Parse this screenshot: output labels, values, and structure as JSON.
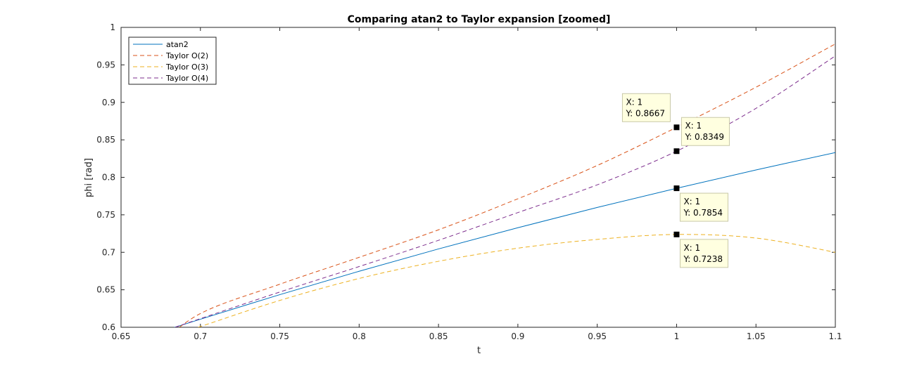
{
  "chart_data": {
    "type": "line",
    "title": "Comparing atan2 to Taylor expansion [zoomed]",
    "xlabel": "t",
    "ylabel": "phi [rad]",
    "xlim": [
      0.65,
      1.1
    ],
    "ylim": [
      0.6,
      1.0
    ],
    "xticks": [
      0.65,
      0.7,
      0.75,
      0.8,
      0.85,
      0.9,
      0.95,
      1,
      1.05,
      1.1
    ],
    "xtick_labels": [
      "0.65",
      "0.7",
      "0.75",
      "0.8",
      "0.85",
      "0.9",
      "0.95",
      "1",
      "1.05",
      "1.1"
    ],
    "yticks": [
      0.6,
      0.65,
      0.7,
      0.75,
      0.8,
      0.85,
      0.9,
      0.95,
      1.0
    ],
    "ytick_labels": [
      "0.6",
      "0.65",
      "0.7",
      "0.75",
      "0.8",
      "0.85",
      "0.9",
      "0.95",
      "1"
    ],
    "grid": false,
    "legend_position": "top-left",
    "series": [
      {
        "name": "atan2",
        "color": "#0072BD",
        "style": "solid",
        "x": [
          0.68,
          0.7,
          0.75,
          0.8,
          0.85,
          0.9,
          0.95,
          1.0,
          1.05,
          1.1
        ],
        "y": [
          0.5974,
          0.6107,
          0.6435,
          0.6747,
          0.7045,
          0.7328,
          0.7598,
          0.7854,
          0.8098,
          0.833
        ]
      },
      {
        "name": "Taylor O(2)",
        "color": "#D95319",
        "style": "dashed",
        "x": [
          0.67,
          0.7,
          0.75,
          0.8,
          0.85,
          0.9,
          0.95,
          1.0,
          1.05,
          1.1
        ],
        "y": [
          0.5697,
          0.6183,
          0.6574,
          0.6933,
          0.73,
          0.7714,
          0.8158,
          0.8667,
          0.9202,
          0.978
        ]
      },
      {
        "name": "Taylor O(3)",
        "color": "#EDB120",
        "style": "dashed",
        "x": [
          0.69,
          0.7,
          0.75,
          0.8,
          0.85,
          0.9,
          0.95,
          1.0,
          1.05,
          1.1
        ],
        "y": [
          0.5952,
          0.601,
          0.6358,
          0.6651,
          0.688,
          0.7055,
          0.7172,
          0.7238,
          0.719,
          0.7
        ]
      },
      {
        "name": "Taylor O(4)",
        "color": "#7E2F8E",
        "style": "dashed",
        "x": [
          0.68,
          0.7,
          0.75,
          0.8,
          0.85,
          0.9,
          0.95,
          1.0,
          1.05,
          1.1
        ],
        "y": [
          0.5972,
          0.6115,
          0.647,
          0.681,
          0.716,
          0.753,
          0.79,
          0.8349,
          0.892,
          0.962
        ]
      }
    ],
    "datatips": [
      {
        "x": 1,
        "y": 0.8667,
        "x_label": "X: 1",
        "y_label": "Y: 0.8667",
        "placement": "above-left"
      },
      {
        "x": 1,
        "y": 0.8349,
        "x_label": "X: 1",
        "y_label": "Y: 0.8349",
        "placement": "right"
      },
      {
        "x": 1,
        "y": 0.7854,
        "x_label": "X: 1",
        "y_label": "Y: 0.7854",
        "placement": "below-right"
      },
      {
        "x": 1,
        "y": 0.7238,
        "x_label": "X: 1",
        "y_label": "Y: 0.7238",
        "placement": "below-right"
      }
    ]
  }
}
